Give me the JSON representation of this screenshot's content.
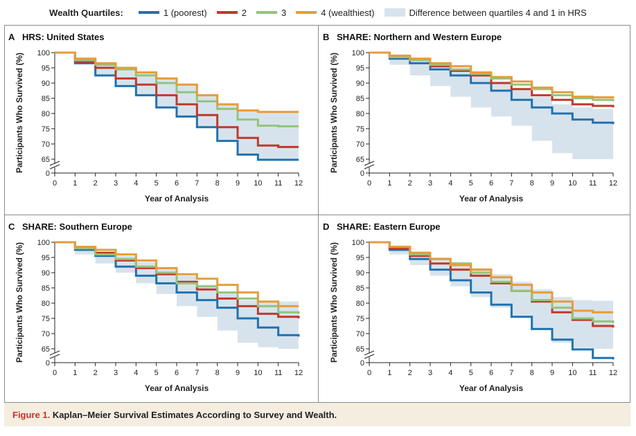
{
  "legend": {
    "title": "Wealth Quartiles:",
    "items": [
      {
        "label": "1 (poorest)",
        "color": "#1f72b0"
      },
      {
        "label": "2",
        "color": "#c0392b"
      },
      {
        "label": "3",
        "color": "#93c47d"
      },
      {
        "label": "4 (wealthiest)",
        "color": "#e69c3a"
      }
    ],
    "band_label": "Difference between quartiles 4 and 1 in HRS",
    "band_color": "#d7e3ec"
  },
  "caption": {
    "label": "Figure 1.",
    "text": "Kaplan–Meier Survival Estimates According to Survey and Wealth."
  },
  "chart_data": [
    {
      "type": "line",
      "step": true,
      "letter": "A",
      "title": "HRS: United States",
      "xlabel": "Year of Analysis",
      "ylabel": "Participants Who Survived (%)",
      "xlim": [
        0,
        12
      ],
      "ylim_break": [
        65,
        100
      ],
      "x_ticks": [
        0,
        1,
        2,
        3,
        4,
        5,
        6,
        7,
        8,
        9,
        10,
        11,
        12
      ],
      "y_ticks": [
        0,
        65,
        70,
        75,
        80,
        85,
        90,
        95,
        100
      ],
      "x": [
        0,
        1,
        2,
        3,
        4,
        5,
        6,
        7,
        8,
        9,
        10,
        11,
        12
      ],
      "band": {
        "upper": [
          100,
          98,
          96.5,
          95,
          93.5,
          91.5,
          89.5,
          86,
          83,
          81,
          80.5,
          80.5,
          80.5
        ],
        "lower": [
          100,
          96.5,
          92.5,
          89,
          86,
          82,
          79,
          75.5,
          71,
          66.5,
          64.8,
          64.8,
          64.8
        ]
      },
      "series": [
        {
          "name": "1 (poorest)",
          "values": [
            100,
            96.5,
            92.5,
            89,
            86,
            82,
            79,
            75.5,
            71,
            66.5,
            64.8,
            64.8,
            64.8
          ]
        },
        {
          "name": "2",
          "values": [
            100,
            97,
            95,
            91.5,
            89.5,
            86,
            83,
            79.5,
            75.5,
            72,
            69.5,
            69,
            69
          ]
        },
        {
          "name": "3",
          "values": [
            100,
            97.5,
            96,
            94.5,
            92.5,
            90,
            87,
            84,
            81.5,
            78,
            76,
            75.8,
            75.8
          ]
        },
        {
          "name": "4 (wealthiest)",
          "values": [
            100,
            98,
            96.5,
            95,
            93.5,
            91.5,
            89.5,
            86,
            83,
            81,
            80.5,
            80.5,
            80.5
          ]
        }
      ]
    },
    {
      "type": "line",
      "step": true,
      "letter": "B",
      "title": "SHARE: Northern and Western Europe",
      "xlabel": "Year of Analysis",
      "ylabel": "Participants Who Survived (%)",
      "xlim": [
        0,
        12
      ],
      "ylim_break": [
        65,
        100
      ],
      "x_ticks": [
        0,
        1,
        2,
        3,
        4,
        5,
        6,
        7,
        8,
        9,
        10,
        11,
        12
      ],
      "y_ticks": [
        0,
        65,
        70,
        75,
        80,
        85,
        90,
        95,
        100
      ],
      "x": [
        0,
        1,
        2,
        3,
        4,
        5,
        6,
        7,
        8,
        9,
        10,
        11,
        12
      ],
      "band": {
        "upper": [
          100,
          98.5,
          97.5,
          96,
          94.5,
          92.5,
          90.5,
          88,
          85.5,
          83,
          82,
          81.5,
          81.5
        ],
        "lower": [
          100,
          96,
          92.5,
          89,
          85.5,
          82,
          79,
          76,
          71,
          67,
          65,
          65,
          65
        ]
      },
      "series": [
        {
          "name": "1 (poorest)",
          "values": [
            100,
            98,
            96.5,
            94.5,
            92.5,
            90,
            87.5,
            84.5,
            82,
            80,
            78,
            77,
            76.5
          ]
        },
        {
          "name": "2",
          "values": [
            100,
            98.5,
            97.5,
            95.5,
            94,
            92.5,
            90,
            88,
            86,
            84.5,
            83,
            82.5,
            82
          ]
        },
        {
          "name": "3",
          "values": [
            100,
            98.5,
            97.5,
            96,
            94.5,
            93,
            91.5,
            89.5,
            88,
            86,
            85,
            84.5,
            84
          ]
        },
        {
          "name": "4 (wealthiest)",
          "values": [
            100,
            99,
            98,
            96.5,
            95.5,
            93.5,
            92,
            90.5,
            88.5,
            87,
            85.5,
            85.3,
            85
          ]
        }
      ]
    },
    {
      "type": "line",
      "step": true,
      "letter": "C",
      "title": "SHARE: Southern Europe",
      "xlabel": "Year of Analysis",
      "ylabel": "Participants Who Survived (%)",
      "xlim": [
        0,
        12
      ],
      "ylim_break": [
        65,
        100
      ],
      "x_ticks": [
        0,
        1,
        2,
        3,
        4,
        5,
        6,
        7,
        8,
        9,
        10,
        11,
        12
      ],
      "y_ticks": [
        0,
        65,
        70,
        75,
        80,
        85,
        90,
        95,
        100
      ],
      "x": [
        0,
        1,
        2,
        3,
        4,
        5,
        6,
        7,
        8,
        9,
        10,
        11,
        12
      ],
      "band": {
        "upper": [
          100,
          98.5,
          97,
          95.5,
          93.5,
          91.5,
          89,
          86,
          83.5,
          81,
          80.5,
          80.5,
          80.5
        ],
        "lower": [
          100,
          96,
          93,
          90,
          86.5,
          83,
          79,
          75.5,
          71,
          67,
          65.5,
          65,
          65
        ]
      },
      "series": [
        {
          "name": "1 (poorest)",
          "values": [
            100,
            97.5,
            95.5,
            92,
            89,
            86.5,
            83.5,
            81,
            78.5,
            75,
            72,
            69.5,
            69
          ]
        },
        {
          "name": "2",
          "values": [
            100,
            98,
            96.5,
            94,
            91.5,
            89.5,
            87,
            84.5,
            81.5,
            79,
            76.5,
            75.5,
            75
          ]
        },
        {
          "name": "3",
          "values": [
            100,
            98,
            96,
            94.5,
            92,
            90,
            86.5,
            85.5,
            83.5,
            81.5,
            79,
            77,
            76.5
          ]
        },
        {
          "name": "4 (wealthiest)",
          "values": [
            100,
            98.5,
            97.5,
            96,
            94,
            91.5,
            89.5,
            88,
            86,
            83.5,
            80.5,
            79,
            79
          ]
        }
      ]
    },
    {
      "type": "line",
      "step": true,
      "letter": "D",
      "title": "SHARE: Eastern Europe",
      "xlabel": "Year of Analysis",
      "ylabel": "Participants Who Survived (%)",
      "xlim": [
        0,
        12
      ],
      "ylim_break": [
        65,
        100
      ],
      "x_ticks": [
        0,
        1,
        2,
        3,
        4,
        5,
        6,
        7,
        8,
        9,
        10,
        11,
        12
      ],
      "y_ticks": [
        0,
        65,
        70,
        75,
        80,
        85,
        90,
        95,
        100
      ],
      "x": [
        0,
        1,
        2,
        3,
        4,
        5,
        6,
        7,
        8,
        9,
        10,
        11,
        12
      ],
      "band": {
        "upper": [
          100,
          98.5,
          97,
          95,
          93.5,
          91.5,
          89.5,
          87,
          84.5,
          82,
          81,
          80.8,
          80.8
        ],
        "lower": [
          100,
          96,
          92.5,
          89,
          85.5,
          82,
          78.5,
          75.5,
          71.5,
          67,
          65.3,
          65,
          65
        ]
      },
      "series": [
        {
          "name": "1 (poorest)",
          "values": [
            100,
            97.5,
            94.5,
            91,
            87.5,
            83.5,
            79.5,
            75.5,
            71.5,
            68,
            64.8,
            62,
            61.5
          ]
        },
        {
          "name": "2",
          "values": [
            100,
            98,
            95.5,
            93,
            91,
            89,
            86.5,
            84,
            80.5,
            77,
            74.5,
            72.5,
            72
          ]
        },
        {
          "name": "3",
          "values": [
            100,
            98.5,
            96,
            94.5,
            93,
            90,
            87,
            84,
            81,
            78.5,
            75,
            74,
            73.5
          ]
        },
        {
          "name": "4 (wealthiest)",
          "values": [
            100,
            98.5,
            96.5,
            94.5,
            92.5,
            91,
            88.5,
            86,
            83.5,
            80.5,
            77.5,
            77,
            77
          ]
        }
      ]
    }
  ]
}
